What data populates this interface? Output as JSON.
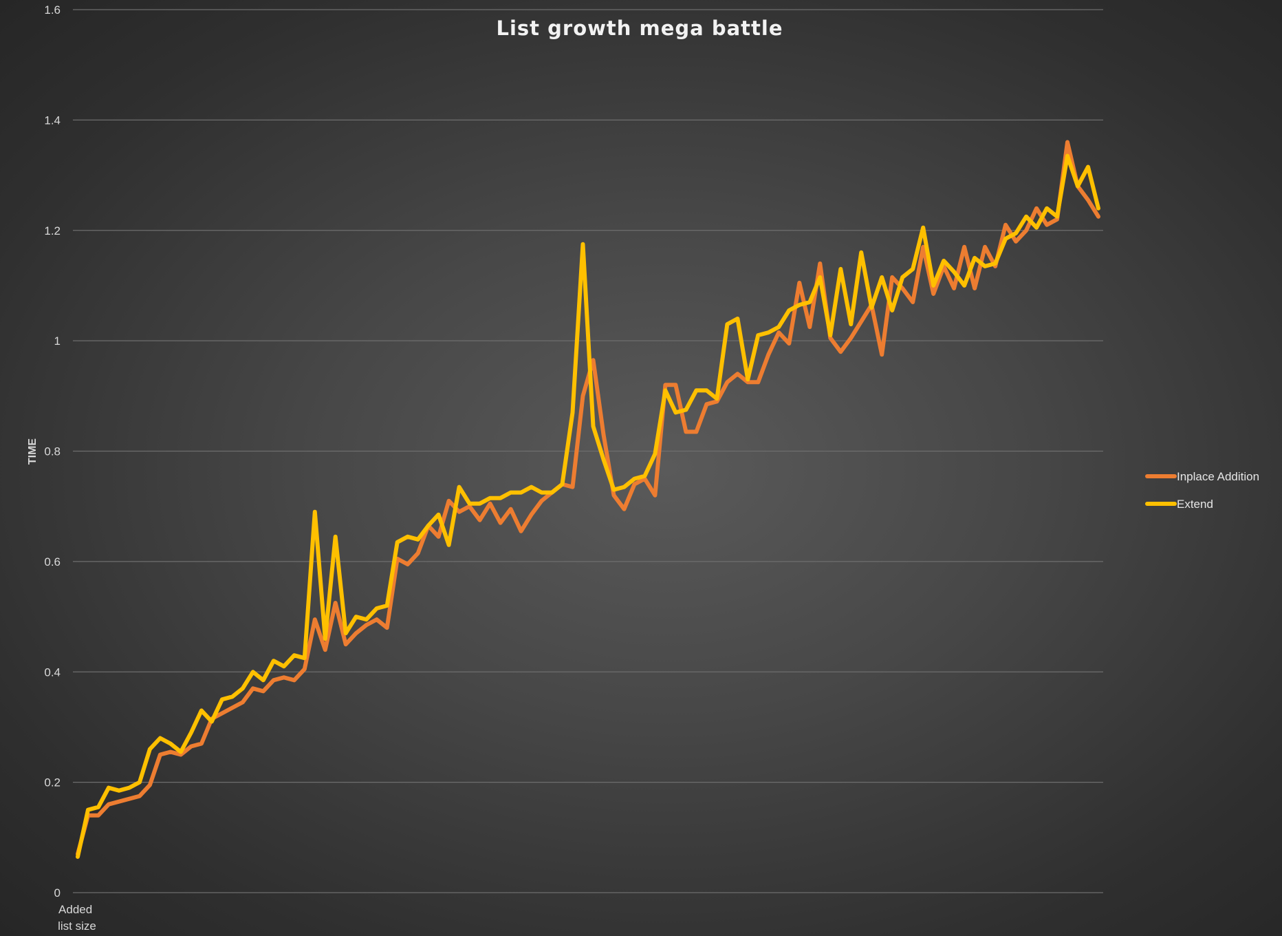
{
  "chart_data": {
    "type": "line",
    "title": "List growth mega battle",
    "xlabel_lines": [
      "Added",
      "list size"
    ],
    "ylabel": "TIME",
    "ylim": [
      0,
      1.6
    ],
    "yticks": [
      0,
      0.2,
      0.4,
      0.6,
      0.8,
      1,
      1.2,
      1.4,
      1.6
    ],
    "ytick_labels": [
      "0",
      "0.2",
      "0.4",
      "0.6",
      "0.8",
      "1",
      "1.2",
      "1.4",
      "1.6"
    ],
    "grid": true,
    "legend_position": "right",
    "series": [
      {
        "name": "Inplace Addition",
        "color": "#ED7D31",
        "values": [
          0.07,
          0.14,
          0.14,
          0.16,
          0.165,
          0.17,
          0.175,
          0.195,
          0.25,
          0.255,
          0.25,
          0.265,
          0.27,
          0.315,
          0.325,
          0.335,
          0.345,
          0.37,
          0.365,
          0.385,
          0.39,
          0.385,
          0.405,
          0.495,
          0.44,
          0.525,
          0.45,
          0.47,
          0.485,
          0.495,
          0.48,
          0.605,
          0.595,
          0.615,
          0.665,
          0.645,
          0.71,
          0.69,
          0.7,
          0.675,
          0.705,
          0.67,
          0.695,
          0.655,
          0.685,
          0.71,
          0.725,
          0.74,
          0.735,
          0.9,
          0.965,
          0.83,
          0.72,
          0.695,
          0.74,
          0.75,
          0.72,
          0.92,
          0.92,
          0.835,
          0.835,
          0.885,
          0.89,
          0.925,
          0.94,
          0.925,
          0.925,
          0.975,
          1.015,
          0.995,
          1.105,
          1.025,
          1.14,
          1.005,
          0.98,
          1.005,
          1.035,
          1.065,
          0.975,
          1.115,
          1.095,
          1.07,
          1.17,
          1.085,
          1.135,
          1.095,
          1.17,
          1.095,
          1.17,
          1.135,
          1.21,
          1.18,
          1.2,
          1.24,
          1.21,
          1.22,
          1.36,
          1.28,
          1.255,
          1.225
        ]
      },
      {
        "name": "Extend",
        "color": "#FFC000",
        "values": [
          0.065,
          0.15,
          0.155,
          0.19,
          0.185,
          0.19,
          0.2,
          0.26,
          0.28,
          0.27,
          0.255,
          0.29,
          0.33,
          0.31,
          0.35,
          0.355,
          0.37,
          0.4,
          0.385,
          0.42,
          0.41,
          0.43,
          0.425,
          0.69,
          0.46,
          0.645,
          0.47,
          0.5,
          0.495,
          0.515,
          0.52,
          0.635,
          0.645,
          0.64,
          0.665,
          0.685,
          0.63,
          0.735,
          0.705,
          0.705,
          0.715,
          0.715,
          0.725,
          0.725,
          0.735,
          0.725,
          0.725,
          0.74,
          0.87,
          1.175,
          0.845,
          0.785,
          0.73,
          0.735,
          0.75,
          0.755,
          0.795,
          0.91,
          0.87,
          0.875,
          0.91,
          0.91,
          0.895,
          1.03,
          1.04,
          0.93,
          1.01,
          1.015,
          1.025,
          1.055,
          1.065,
          1.07,
          1.115,
          1.01,
          1.13,
          1.03,
          1.16,
          1.06,
          1.115,
          1.055,
          1.115,
          1.13,
          1.205,
          1.1,
          1.145,
          1.125,
          1.1,
          1.15,
          1.135,
          1.14,
          1.185,
          1.195,
          1.225,
          1.205,
          1.24,
          1.225,
          1.335,
          1.28,
          1.315,
          1.24
        ]
      }
    ]
  }
}
